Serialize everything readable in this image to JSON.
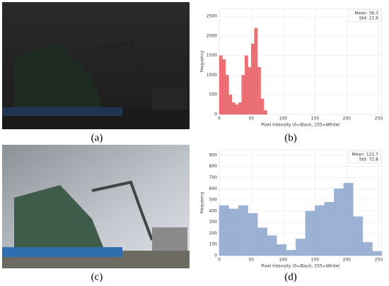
{
  "panels": {
    "labels": [
      "(a)",
      "(b)",
      "(c)",
      "(d)"
    ]
  },
  "chart_data": [
    {
      "type": "histogram",
      "color": "#e8585e",
      "x_label": "Pixel Intensity (0=Black, 255=White)",
      "y_label": "Frequency",
      "annotations": [
        "Mean: 36.3",
        "Std: 21.9"
      ],
      "bins": [
        0,
        5,
        10,
        15,
        20,
        25,
        30,
        35,
        40,
        45,
        50,
        55,
        60,
        65,
        70,
        75
      ],
      "values": [
        1500,
        1400,
        1000,
        500,
        300,
        250,
        300,
        1000,
        1500,
        1200,
        1800,
        2200,
        1200,
        400,
        100
      ],
      "xlim": [
        0,
        255
      ],
      "xticks": [
        0,
        50,
        100,
        150,
        200,
        250
      ],
      "ylim": [
        0,
        2700
      ],
      "yticks": [
        0,
        500,
        1000,
        1500,
        2000,
        2500
      ],
      "grid": true
    },
    {
      "type": "histogram",
      "color": "#8aa5cc",
      "x_label": "Pixel Intensity (0=Black, 255=White)",
      "y_label": "Frequency",
      "annotations": [
        "Mean: 122.7",
        "Std: 72.8"
      ],
      "bins": [
        0,
        15,
        30,
        45,
        60,
        75,
        90,
        105,
        120,
        135,
        150,
        165,
        180,
        195,
        210,
        225,
        240,
        255
      ],
      "values": [
        450,
        420,
        450,
        380,
        250,
        180,
        100,
        50,
        150,
        400,
        450,
        480,
        600,
        650,
        350,
        120,
        40
      ],
      "xlim": [
        0,
        255
      ],
      "xticks": [
        0,
        50,
        100,
        150,
        200,
        250
      ],
      "ylim": [
        0,
        950
      ],
      "yticks": [
        0,
        100,
        200,
        300,
        400,
        500,
        600,
        700,
        800,
        900
      ],
      "grid": true
    }
  ]
}
